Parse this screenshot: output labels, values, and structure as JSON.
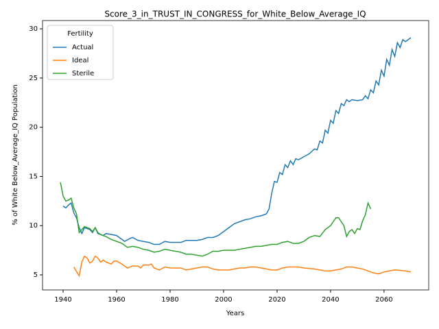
{
  "chart_data": {
    "type": "line",
    "title": "Score_3_in_TRUST_IN_CONGRESS_for_White_Below_Average_IQ",
    "x_label": "Years",
    "y_label": "% of White Below_Average_IQ Population",
    "legend_title": "Fertility",
    "legend_position": "upper left",
    "xlim": [
      1932.3,
      2076.7
    ],
    "ylim": [
      3.47,
      30.84
    ],
    "xticks": [
      1940,
      1960,
      1980,
      2000,
      2020,
      2040,
      2060
    ],
    "yticks": [
      5,
      10,
      15,
      20,
      25,
      30
    ],
    "series": [
      {
        "name": "Actual",
        "color": "#1f77b4",
        "x": [
          1940,
          1941,
          1942,
          1943,
          1944,
          1945,
          1946,
          1947,
          1948,
          1950,
          1951,
          1952,
          1953,
          1955,
          1956,
          1958,
          1960,
          1962,
          1963,
          1965,
          1966,
          1968,
          1970,
          1972,
          1974,
          1976,
          1978,
          1980,
          1982,
          1984,
          1986,
          1988,
          1990,
          1992,
          1994,
          1996,
          1998,
          2000,
          2002,
          2004,
          2006,
          2008,
          2010,
          2012,
          2014,
          2016,
          2017,
          2018,
          2019,
          2020,
          2021,
          2022,
          2023,
          2024,
          2025,
          2026,
          2027,
          2028,
          2030,
          2032,
          2034,
          2035,
          2036,
          2037,
          2038,
          2039,
          2040,
          2041,
          2042,
          2043,
          2044,
          2045,
          2046,
          2047,
          2048,
          2050,
          2052,
          2053,
          2054,
          2055,
          2056,
          2057,
          2058,
          2059,
          2060,
          2061,
          2062,
          2063,
          2064,
          2065,
          2066,
          2067,
          2068,
          2070
        ],
        "values": [
          12.0,
          11.8,
          12.1,
          12.3,
          11.3,
          10.8,
          9.8,
          9.2,
          9.8,
          9.6,
          9.3,
          9.8,
          9.2,
          9.0,
          9.2,
          9.1,
          9.0,
          8.6,
          8.4,
          8.7,
          8.8,
          8.5,
          8.4,
          8.3,
          8.1,
          8.1,
          8.4,
          8.3,
          8.3,
          8.3,
          8.5,
          8.5,
          8.5,
          8.6,
          8.8,
          8.8,
          9.0,
          9.4,
          9.8,
          10.2,
          10.4,
          10.6,
          10.7,
          10.9,
          11.0,
          11.2,
          11.7,
          13.3,
          14.5,
          14.4,
          15.4,
          15.2,
          16.2,
          15.9,
          16.6,
          16.2,
          16.8,
          16.7,
          17.0,
          17.3,
          17.8,
          17.7,
          18.6,
          18.4,
          19.7,
          19.4,
          20.7,
          20.4,
          21.7,
          21.4,
          22.4,
          22.2,
          22.8,
          22.6,
          22.8,
          22.7,
          22.8,
          23.2,
          22.9,
          23.8,
          23.5,
          24.7,
          24.3,
          25.8,
          25.2,
          26.9,
          26.3,
          27.9,
          27.2,
          28.6,
          28.1,
          28.9,
          28.7,
          29.1
        ]
      },
      {
        "name": "Ideal",
        "color": "#ff7f0e",
        "x": [
          1944,
          1946,
          1947,
          1948,
          1949,
          1950,
          1951,
          1952,
          1953,
          1954,
          1955,
          1956,
          1958,
          1959,
          1960,
          1962,
          1964,
          1966,
          1968,
          1969,
          1970,
          1972,
          1973,
          1974,
          1976,
          1978,
          1980,
          1984,
          1986,
          1988,
          1990,
          1992,
          1994,
          1996,
          1998,
          2000,
          2002,
          2004,
          2006,
          2008,
          2010,
          2012,
          2014,
          2016,
          2018,
          2020,
          2022,
          2024,
          2026,
          2028,
          2030,
          2034,
          2038,
          2040,
          2042,
          2044,
          2046,
          2048,
          2050,
          2052,
          2054,
          2056,
          2058,
          2060,
          2062,
          2064,
          2068,
          2070
        ],
        "values": [
          5.8,
          4.9,
          6.3,
          6.9,
          6.7,
          6.2,
          6.4,
          6.9,
          6.7,
          6.3,
          6.5,
          6.3,
          6.1,
          6.4,
          6.4,
          6.1,
          5.7,
          5.9,
          5.9,
          5.7,
          6.0,
          6.0,
          6.1,
          5.7,
          5.5,
          5.8,
          5.7,
          5.7,
          5.5,
          5.6,
          5.7,
          5.8,
          5.8,
          5.6,
          5.5,
          5.5,
          5.5,
          5.6,
          5.7,
          5.7,
          5.8,
          5.8,
          5.7,
          5.6,
          5.5,
          5.5,
          5.7,
          5.8,
          5.8,
          5.8,
          5.7,
          5.6,
          5.4,
          5.4,
          5.5,
          5.6,
          5.8,
          5.8,
          5.7,
          5.6,
          5.4,
          5.2,
          5.1,
          5.3,
          5.4,
          5.5,
          5.4,
          5.3
        ]
      },
      {
        "name": "Sterile",
        "color": "#2ca02c",
        "x": [
          1939,
          1940,
          1941,
          1942,
          1943,
          1944,
          1945,
          1946,
          1947,
          1948,
          1949,
          1950,
          1951,
          1952,
          1953,
          1954,
          1956,
          1958,
          1960,
          1962,
          1964,
          1966,
          1968,
          1970,
          1972,
          1974,
          1976,
          1978,
          1980,
          1982,
          1984,
          1986,
          1988,
          1990,
          1992,
          1994,
          1996,
          1998,
          2000,
          2002,
          2004,
          2006,
          2008,
          2010,
          2012,
          2014,
          2016,
          2018,
          2020,
          2022,
          2024,
          2026,
          2028,
          2030,
          2032,
          2034,
          2036,
          2038,
          2040,
          2042,
          2043,
          2044,
          2045,
          2046,
          2047,
          2048,
          2049,
          2050,
          2051,
          2052,
          2053,
          2054,
          2055
        ],
        "values": [
          14.4,
          13.0,
          12.5,
          12.6,
          12.8,
          11.8,
          11.2,
          9.3,
          9.6,
          9.9,
          9.8,
          9.7,
          9.4,
          9.8,
          9.3,
          9.1,
          8.9,
          8.6,
          8.4,
          8.2,
          7.8,
          7.9,
          7.8,
          7.6,
          7.5,
          7.3,
          7.4,
          7.6,
          7.5,
          7.4,
          7.3,
          7.1,
          7.1,
          7.0,
          6.9,
          7.1,
          7.4,
          7.4,
          7.5,
          7.5,
          7.5,
          7.6,
          7.7,
          7.8,
          7.9,
          7.9,
          8.0,
          8.1,
          8.1,
          8.3,
          8.4,
          8.2,
          8.2,
          8.4,
          8.8,
          9.0,
          8.9,
          9.6,
          10.0,
          10.8,
          10.8,
          10.4,
          10.0,
          8.9,
          9.4,
          9.6,
          9.2,
          9.7,
          9.6,
          10.5,
          11.1,
          12.3,
          11.7
        ]
      }
    ]
  }
}
